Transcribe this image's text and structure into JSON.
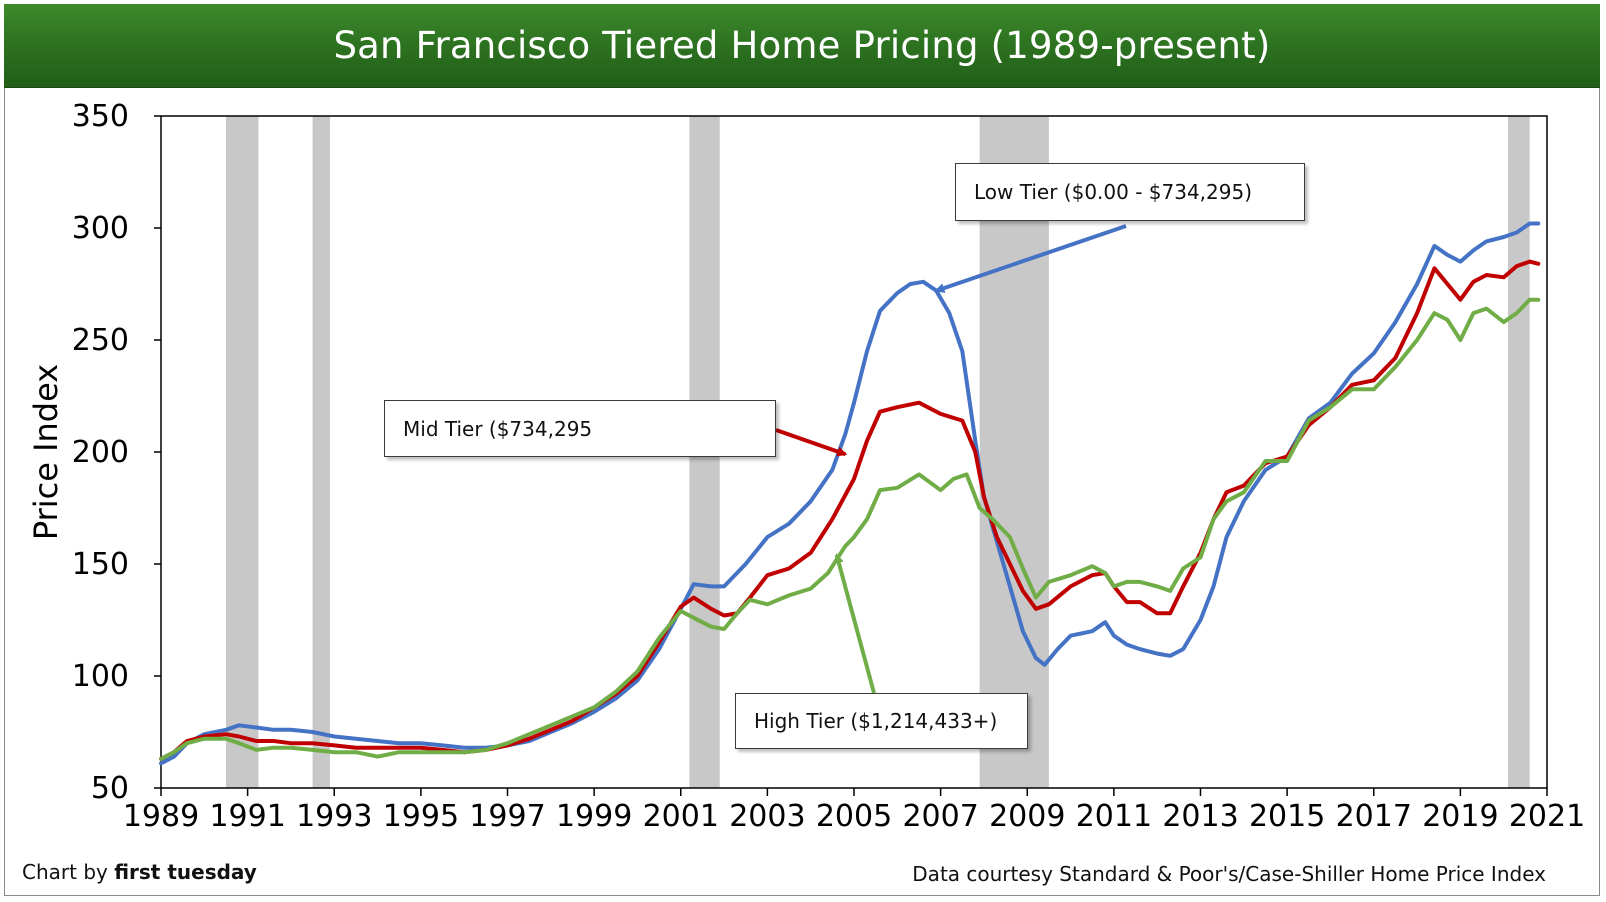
{
  "title": "San Francisco Tiered Home Pricing (1989-present)",
  "footer": {
    "credit_prefix": "Chart by ",
    "credit_brand": "first tuesday",
    "source": "Data courtesy Standard & Poor's/Case-Shiller Home Price Index"
  },
  "colors": {
    "low": "#4472c4",
    "mid": "#c00000",
    "high": "#70ad47",
    "recession": "#c8c8c8",
    "title_bar": "#2e7421"
  },
  "chart_data": {
    "type": "line",
    "title": "San Francisco Tiered Home Pricing (1989-present)",
    "xlabel": "",
    "ylabel": "Price Index",
    "xlim": [
      1989,
      2021
    ],
    "ylim": [
      50,
      350
    ],
    "x_ticks": [
      1989,
      1991,
      1993,
      1995,
      1997,
      1999,
      2001,
      2003,
      2005,
      2007,
      2009,
      2011,
      2013,
      2015,
      2017,
      2019,
      2021
    ],
    "y_ticks": [
      50,
      100,
      150,
      200,
      250,
      300,
      350
    ],
    "grid": false,
    "recession_bands": [
      [
        1990.5,
        1991.25
      ],
      [
        1992.5,
        1992.9
      ],
      [
        2001.2,
        2001.9
      ],
      [
        2007.9,
        2009.5
      ],
      [
        2020.1,
        2020.6
      ]
    ],
    "series": [
      {
        "name": "Low Tier",
        "color": "#4472c4",
        "points": [
          [
            1989.0,
            61
          ],
          [
            1989.3,
            64
          ],
          [
            1989.6,
            70
          ],
          [
            1990.0,
            74
          ],
          [
            1990.5,
            76
          ],
          [
            1990.8,
            78
          ],
          [
            1991.2,
            77
          ],
          [
            1991.6,
            76
          ],
          [
            1992.0,
            76
          ],
          [
            1992.5,
            75
          ],
          [
            1993.0,
            73
          ],
          [
            1993.5,
            72
          ],
          [
            1994.0,
            71
          ],
          [
            1994.5,
            70
          ],
          [
            1995.0,
            70
          ],
          [
            1995.5,
            69
          ],
          [
            1996.0,
            68
          ],
          [
            1996.5,
            68
          ],
          [
            1997.0,
            69
          ],
          [
            1997.5,
            71
          ],
          [
            1998.0,
            75
          ],
          [
            1998.5,
            79
          ],
          [
            1999.0,
            84
          ],
          [
            1999.5,
            90
          ],
          [
            2000.0,
            98
          ],
          [
            2000.5,
            112
          ],
          [
            2001.0,
            130
          ],
          [
            2001.3,
            141
          ],
          [
            2001.7,
            140
          ],
          [
            2002.0,
            140
          ],
          [
            2002.5,
            150
          ],
          [
            2003.0,
            162
          ],
          [
            2003.5,
            168
          ],
          [
            2004.0,
            178
          ],
          [
            2004.5,
            192
          ],
          [
            2004.8,
            208
          ],
          [
            2005.0,
            222
          ],
          [
            2005.3,
            245
          ],
          [
            2005.6,
            263
          ],
          [
            2006.0,
            271
          ],
          [
            2006.3,
            275
          ],
          [
            2006.6,
            276
          ],
          [
            2006.9,
            272
          ],
          [
            2007.2,
            262
          ],
          [
            2007.5,
            245
          ],
          [
            2007.8,
            205
          ],
          [
            2008.0,
            180
          ],
          [
            2008.3,
            160
          ],
          [
            2008.6,
            140
          ],
          [
            2008.9,
            120
          ],
          [
            2009.2,
            108
          ],
          [
            2009.4,
            105
          ],
          [
            2009.7,
            112
          ],
          [
            2010.0,
            118
          ],
          [
            2010.5,
            120
          ],
          [
            2010.8,
            124
          ],
          [
            2011.0,
            118
          ],
          [
            2011.3,
            114
          ],
          [
            2011.6,
            112
          ],
          [
            2012.0,
            110
          ],
          [
            2012.3,
            109
          ],
          [
            2012.6,
            112
          ],
          [
            2013.0,
            125
          ],
          [
            2013.3,
            140
          ],
          [
            2013.6,
            162
          ],
          [
            2014.0,
            178
          ],
          [
            2014.5,
            192
          ],
          [
            2015.0,
            198
          ],
          [
            2015.5,
            215
          ],
          [
            2016.0,
            222
          ],
          [
            2016.5,
            235
          ],
          [
            2017.0,
            244
          ],
          [
            2017.5,
            258
          ],
          [
            2018.0,
            275
          ],
          [
            2018.4,
            292
          ],
          [
            2018.7,
            288
          ],
          [
            2019.0,
            285
          ],
          [
            2019.3,
            290
          ],
          [
            2019.6,
            294
          ],
          [
            2020.0,
            296
          ],
          [
            2020.3,
            298
          ],
          [
            2020.6,
            302
          ],
          [
            2020.8,
            302
          ]
        ]
      },
      {
        "name": "Mid Tier",
        "color": "#c00000",
        "points": [
          [
            1989.0,
            63
          ],
          [
            1989.3,
            66
          ],
          [
            1989.6,
            71
          ],
          [
            1990.0,
            73
          ],
          [
            1990.5,
            74
          ],
          [
            1990.8,
            73
          ],
          [
            1991.2,
            71
          ],
          [
            1991.6,
            71
          ],
          [
            1992.0,
            70
          ],
          [
            1992.5,
            70
          ],
          [
            1993.0,
            69
          ],
          [
            1993.5,
            68
          ],
          [
            1994.0,
            68
          ],
          [
            1994.5,
            68
          ],
          [
            1995.0,
            68
          ],
          [
            1995.5,
            67
          ],
          [
            1996.0,
            66
          ],
          [
            1996.5,
            67
          ],
          [
            1997.0,
            69
          ],
          [
            1997.5,
            72
          ],
          [
            1998.0,
            76
          ],
          [
            1998.5,
            80
          ],
          [
            1999.0,
            86
          ],
          [
            1999.5,
            92
          ],
          [
            2000.0,
            100
          ],
          [
            2000.5,
            115
          ],
          [
            2001.0,
            131
          ],
          [
            2001.3,
            135
          ],
          [
            2001.7,
            130
          ],
          [
            2002.0,
            127
          ],
          [
            2002.3,
            128
          ],
          [
            2002.6,
            135
          ],
          [
            2003.0,
            145
          ],
          [
            2003.5,
            148
          ],
          [
            2004.0,
            155
          ],
          [
            2004.5,
            170
          ],
          [
            2005.0,
            188
          ],
          [
            2005.3,
            205
          ],
          [
            2005.6,
            218
          ],
          [
            2006.0,
            220
          ],
          [
            2006.5,
            222
          ],
          [
            2007.0,
            217
          ],
          [
            2007.5,
            214
          ],
          [
            2007.8,
            200
          ],
          [
            2008.0,
            180
          ],
          [
            2008.3,
            162
          ],
          [
            2008.6,
            150
          ],
          [
            2008.9,
            138
          ],
          [
            2009.2,
            130
          ],
          [
            2009.5,
            132
          ],
          [
            2010.0,
            140
          ],
          [
            2010.5,
            145
          ],
          [
            2010.8,
            146
          ],
          [
            2011.0,
            140
          ],
          [
            2011.3,
            133
          ],
          [
            2011.6,
            133
          ],
          [
            2012.0,
            128
          ],
          [
            2012.3,
            128
          ],
          [
            2012.6,
            140
          ],
          [
            2013.0,
            155
          ],
          [
            2013.3,
            170
          ],
          [
            2013.6,
            182
          ],
          [
            2014.0,
            185
          ],
          [
            2014.5,
            195
          ],
          [
            2015.0,
            198
          ],
          [
            2015.5,
            212
          ],
          [
            2016.0,
            220
          ],
          [
            2016.5,
            230
          ],
          [
            2017.0,
            232
          ],
          [
            2017.5,
            242
          ],
          [
            2018.0,
            262
          ],
          [
            2018.4,
            282
          ],
          [
            2018.7,
            275
          ],
          [
            2019.0,
            268
          ],
          [
            2019.3,
            276
          ],
          [
            2019.6,
            279
          ],
          [
            2020.0,
            278
          ],
          [
            2020.3,
            283
          ],
          [
            2020.6,
            285
          ],
          [
            2020.8,
            284
          ]
        ]
      },
      {
        "name": "High Tier",
        "color": "#70ad47",
        "points": [
          [
            1989.0,
            63
          ],
          [
            1989.3,
            66
          ],
          [
            1989.6,
            70
          ],
          [
            1990.0,
            72
          ],
          [
            1990.5,
            72
          ],
          [
            1990.8,
            70
          ],
          [
            1991.2,
            67
          ],
          [
            1991.6,
            68
          ],
          [
            1992.0,
            68
          ],
          [
            1992.5,
            67
          ],
          [
            1993.0,
            66
          ],
          [
            1993.5,
            66
          ],
          [
            1994.0,
            64
          ],
          [
            1994.5,
            66
          ],
          [
            1995.0,
            66
          ],
          [
            1995.5,
            66
          ],
          [
            1996.0,
            66
          ],
          [
            1996.5,
            67
          ],
          [
            1997.0,
            70
          ],
          [
            1997.5,
            74
          ],
          [
            1998.0,
            78
          ],
          [
            1998.5,
            82
          ],
          [
            1999.0,
            86
          ],
          [
            1999.5,
            93
          ],
          [
            2000.0,
            102
          ],
          [
            2000.5,
            117
          ],
          [
            2001.0,
            129
          ],
          [
            2001.3,
            126
          ],
          [
            2001.7,
            122
          ],
          [
            2002.0,
            121
          ],
          [
            2002.3,
            128
          ],
          [
            2002.6,
            134
          ],
          [
            2003.0,
            132
          ],
          [
            2003.5,
            136
          ],
          [
            2004.0,
            139
          ],
          [
            2004.4,
            146
          ],
          [
            2004.8,
            158
          ],
          [
            2005.0,
            162
          ],
          [
            2005.3,
            170
          ],
          [
            2005.6,
            183
          ],
          [
            2006.0,
            184
          ],
          [
            2006.5,
            190
          ],
          [
            2007.0,
            183
          ],
          [
            2007.3,
            188
          ],
          [
            2007.6,
            190
          ],
          [
            2007.9,
            175
          ],
          [
            2008.2,
            170
          ],
          [
            2008.6,
            162
          ],
          [
            2008.9,
            148
          ],
          [
            2009.2,
            135
          ],
          [
            2009.5,
            142
          ],
          [
            2010.0,
            145
          ],
          [
            2010.5,
            149
          ],
          [
            2010.8,
            146
          ],
          [
            2011.0,
            140
          ],
          [
            2011.3,
            142
          ],
          [
            2011.6,
            142
          ],
          [
            2012.0,
            140
          ],
          [
            2012.3,
            138
          ],
          [
            2012.6,
            148
          ],
          [
            2013.0,
            153
          ],
          [
            2013.3,
            170
          ],
          [
            2013.6,
            178
          ],
          [
            2014.0,
            182
          ],
          [
            2014.5,
            196
          ],
          [
            2015.0,
            196
          ],
          [
            2015.5,
            214
          ],
          [
            2016.0,
            220
          ],
          [
            2016.5,
            228
          ],
          [
            2017.0,
            228
          ],
          [
            2017.5,
            238
          ],
          [
            2018.0,
            250
          ],
          [
            2018.4,
            262
          ],
          [
            2018.7,
            259
          ],
          [
            2019.0,
            250
          ],
          [
            2019.3,
            262
          ],
          [
            2019.6,
            264
          ],
          [
            2020.0,
            258
          ],
          [
            2020.3,
            262
          ],
          [
            2020.6,
            268
          ],
          [
            2020.8,
            268
          ]
        ]
      }
    ],
    "annotations": {
      "low": {
        "label": "Low Tier ($0.00 - $734,295)",
        "arrow_to": [
          2006.9,
          272
        ]
      },
      "mid": {
        "label": "Mid Tier ($734,295",
        "arrow_to": [
          2004.8,
          199
        ]
      },
      "high": {
        "label": "High Tier ($1,214,433+)",
        "arrow_to": [
          2004.6,
          154
        ]
      }
    }
  }
}
